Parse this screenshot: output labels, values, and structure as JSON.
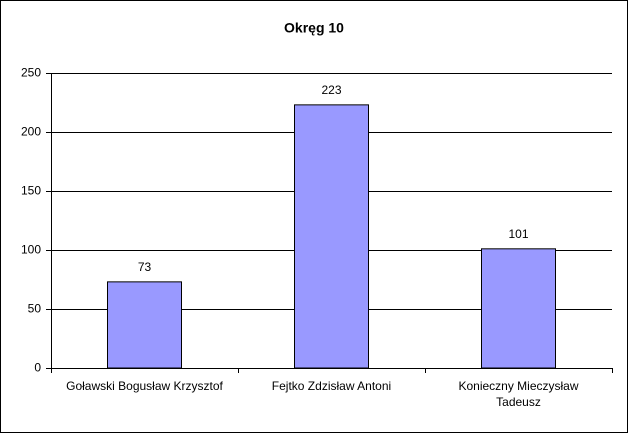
{
  "chart_data": {
    "type": "bar",
    "title": "Okręg 10",
    "categories": [
      "Goławski Bogusław Krzysztof",
      "Fejtko Zdzisław Antoni",
      "Konieczny Mieczysław Tadeusz"
    ],
    "values": [
      73,
      223,
      101
    ],
    "color": "#9999ff",
    "ylim": [
      0,
      250
    ],
    "yticks": [
      0,
      50,
      100,
      150,
      200,
      250
    ],
    "grid": true
  }
}
